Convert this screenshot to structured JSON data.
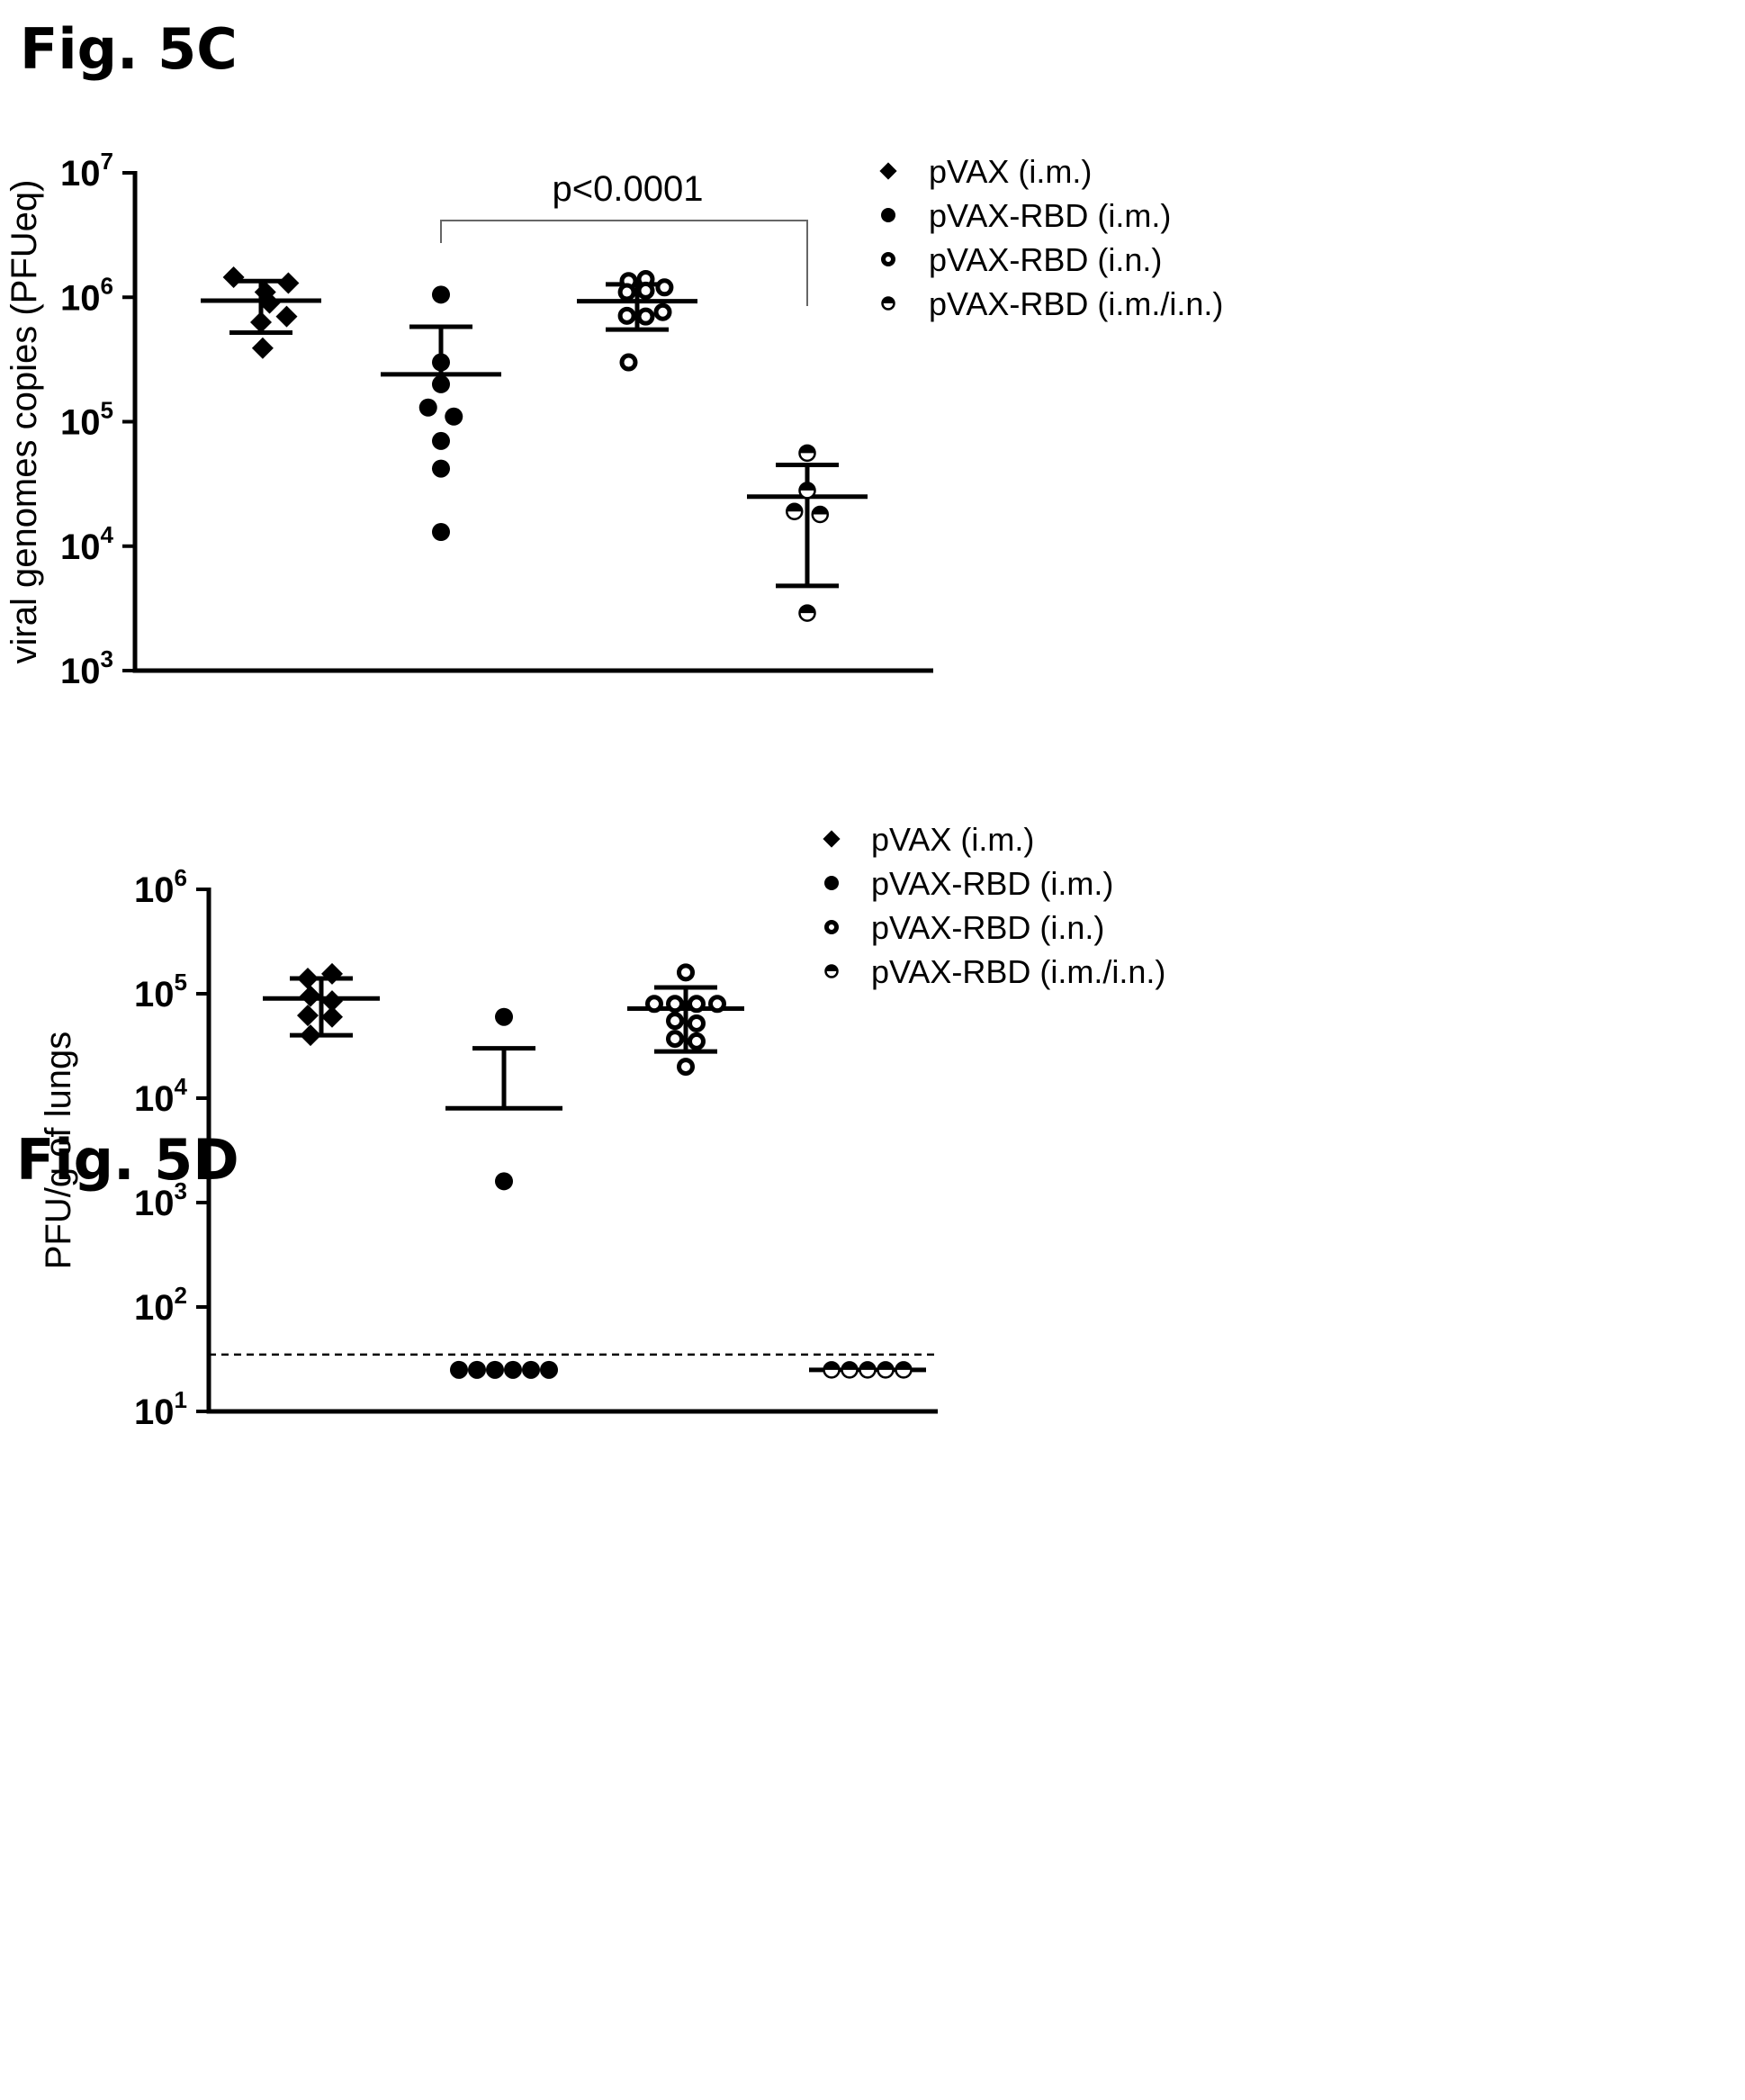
{
  "figures": {
    "fig5c": "Fig. 5C",
    "fig5d": "Fig. 5D"
  },
  "legend": [
    {
      "label": "pVAX (i.m.)",
      "marker": "diamond"
    },
    {
      "label": "pVAX-RBD (i.m.)",
      "marker": "filled-circle"
    },
    {
      "label": "pVAX-RBD (i.n.)",
      "marker": "open-circle"
    },
    {
      "label": "pVAX-RBD (i.m./i.n.)",
      "marker": "half-circle"
    }
  ],
  "colors": {
    "ink": "#000000",
    "bracket": "#666666",
    "background": "#ffffff"
  },
  "chart_data": [
    {
      "type": "scatter",
      "figure": "Fig. 5C",
      "ylabel": "viral genomes copies (PFUeq)",
      "yscale": "log",
      "ylim": [
        1000,
        10000000
      ],
      "yticks": [
        {
          "base": "10",
          "exp": "3",
          "value": 1000
        },
        {
          "base": "10",
          "exp": "4",
          "value": 10000
        },
        {
          "base": "10",
          "exp": "5",
          "value": 100000
        },
        {
          "base": "10",
          "exp": "6",
          "value": 1000000
        },
        {
          "base": "10",
          "exp": "7",
          "value": 10000000
        }
      ],
      "legend_position": "top-right",
      "annotation": {
        "text": "p<0.0001",
        "between": [
          "pVAX-RBD (i.m.)",
          "pVAX-RBD (i.m./i.n.)"
        ]
      },
      "series": [
        {
          "name": "pVAX (i.m.)",
          "marker": "diamond",
          "mean": 940000,
          "err_low": 520000,
          "err_high": 1350000,
          "points": [
            {
              "dx": -0.32,
              "y": 1450000
            },
            {
              "dx": 0.32,
              "y": 1300000
            },
            {
              "dx": 0.05,
              "y": 1100000
            },
            {
              "dx": 0.1,
              "y": 900000
            },
            {
              "dx": 0.3,
              "y": 700000
            },
            {
              "dx": 0.0,
              "y": 630000
            },
            {
              "dx": 0.02,
              "y": 390000
            }
          ]
        },
        {
          "name": "pVAX-RBD (i.m.)",
          "marker": "filled-circle",
          "mean": 240000,
          "err_low": 240000,
          "err_high": 580000,
          "points": [
            {
              "dx": 0.0,
              "y": 1050000
            },
            {
              "dx": 0.0,
              "y": 300000
            },
            {
              "dx": 0.0,
              "y": 200000
            },
            {
              "dx": -0.15,
              "y": 130000
            },
            {
              "dx": 0.15,
              "y": 110000
            },
            {
              "dx": 0.0,
              "y": 70000
            },
            {
              "dx": 0.0,
              "y": 42000
            },
            {
              "dx": 0.0,
              "y": 13000
            }
          ]
        },
        {
          "name": "pVAX-RBD (i.n.)",
          "marker": "open-circle",
          "mean": 930000,
          "err_low": 550000,
          "err_high": 1270000,
          "points": [
            {
              "dx": -0.1,
              "y": 1350000
            },
            {
              "dx": 0.1,
              "y": 1400000
            },
            {
              "dx": 0.32,
              "y": 1200000
            },
            {
              "dx": -0.12,
              "y": 1100000
            },
            {
              "dx": 0.1,
              "y": 1130000
            },
            {
              "dx": -0.12,
              "y": 710000
            },
            {
              "dx": 0.1,
              "y": 700000
            },
            {
              "dx": 0.3,
              "y": 760000
            },
            {
              "dx": -0.1,
              "y": 300000
            }
          ]
        },
        {
          "name": "pVAX-RBD (i.m./i.n.)",
          "marker": "half-circle",
          "mean": 25000,
          "err_low": 4800,
          "err_high": 45000,
          "points": [
            {
              "dx": 0.0,
              "y": 56000
            },
            {
              "dx": 0.0,
              "y": 28000
            },
            {
              "dx": -0.15,
              "y": 19000
            },
            {
              "dx": 0.15,
              "y": 18000
            },
            {
              "dx": 0.0,
              "y": 2900
            }
          ]
        }
      ]
    },
    {
      "type": "scatter",
      "figure": "Fig. 5D",
      "ylabel": "PFU/g of lungs",
      "yscale": "log",
      "ylim": [
        10,
        1000000
      ],
      "yticks": [
        {
          "base": "10",
          "exp": "1",
          "value": 10
        },
        {
          "base": "10",
          "exp": "2",
          "value": 100
        },
        {
          "base": "10",
          "exp": "3",
          "value": 1000
        },
        {
          "base": "10",
          "exp": "4",
          "value": 10000
        },
        {
          "base": "10",
          "exp": "5",
          "value": 100000
        },
        {
          "base": "10",
          "exp": "6",
          "value": 1000000
        }
      ],
      "detection_limit": 35,
      "legend_position": "top-right",
      "series": [
        {
          "name": "pVAX (i.m.)",
          "marker": "diamond",
          "mean": 90000,
          "err_low": 40000,
          "err_high": 140000,
          "points": [
            {
              "dx": -0.15,
              "y": 140000
            },
            {
              "dx": 0.12,
              "y": 155000
            },
            {
              "dx": -0.12,
              "y": 95000
            },
            {
              "dx": 0.12,
              "y": 85000
            },
            {
              "dx": -0.15,
              "y": 62000
            },
            {
              "dx": 0.12,
              "y": 60000
            },
            {
              "dx": -0.12,
              "y": 40000
            }
          ]
        },
        {
          "name": "pVAX-RBD (i.m.)",
          "marker": "filled-circle",
          "mean": 8000,
          "err_low": null,
          "err_high": 30000,
          "points": [
            {
              "dx": 0.0,
              "y": 60000
            },
            {
              "dx": 0.0,
              "y": 1600
            },
            {
              "dx": -0.5,
              "y": 25
            },
            {
              "dx": -0.3,
              "y": 25
            },
            {
              "dx": -0.1,
              "y": 25
            },
            {
              "dx": 0.1,
              "y": 25
            },
            {
              "dx": 0.3,
              "y": 25
            },
            {
              "dx": 0.5,
              "y": 25
            }
          ]
        },
        {
          "name": "pVAX-RBD (i.n.)",
          "marker": "open-circle",
          "mean": 72000,
          "err_low": 28000,
          "err_high": 115000,
          "points": [
            {
              "dx": 0.0,
              "y": 160000
            },
            {
              "dx": -0.35,
              "y": 80000
            },
            {
              "dx": -0.12,
              "y": 80000
            },
            {
              "dx": 0.12,
              "y": 80000
            },
            {
              "dx": 0.35,
              "y": 80000
            },
            {
              "dx": -0.12,
              "y": 55000
            },
            {
              "dx": 0.12,
              "y": 52000
            },
            {
              "dx": -0.12,
              "y": 37000
            },
            {
              "dx": 0.12,
              "y": 35000
            },
            {
              "dx": 0.0,
              "y": 20000
            }
          ]
        },
        {
          "name": "pVAX-RBD (i.m./i.n.)",
          "marker": "half-circle",
          "mean": 25,
          "err_low": null,
          "err_high": null,
          "points": [
            {
              "dx": -0.4,
              "y": 25
            },
            {
              "dx": -0.2,
              "y": 25
            },
            {
              "dx": 0.0,
              "y": 25
            },
            {
              "dx": 0.2,
              "y": 25
            },
            {
              "dx": 0.4,
              "y": 25
            }
          ]
        }
      ]
    }
  ]
}
